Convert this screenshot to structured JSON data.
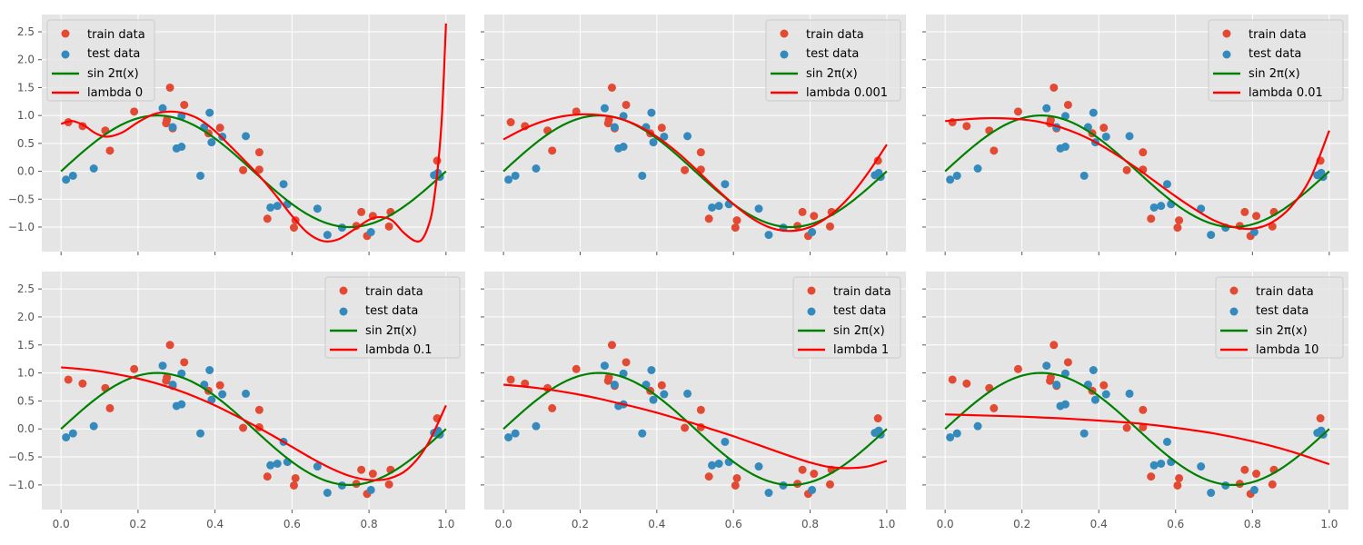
{
  "chart_data": {
    "type": "line",
    "layout": "2x3 grid of subplots, shared axes",
    "style": "ggplot",
    "colors": {
      "train": "#E24A33",
      "test": "#348ABD",
      "true_curve": "#008000",
      "fit_curve": "#FF0000",
      "axes_bg": "#E5E5E5",
      "grid": "#FFFFFF",
      "tick_text": "#555555"
    },
    "xlim": [
      -0.05,
      1.05
    ],
    "ylim": [
      -1.44,
      2.81
    ],
    "xticks": [
      0.0,
      0.2,
      0.4,
      0.6,
      0.8,
      1.0
    ],
    "xtick_labels": [
      "0.0",
      "0.2",
      "0.4",
      "0.6",
      "0.8",
      "1.0"
    ],
    "yticks": [
      -1.0,
      -0.5,
      0.0,
      0.5,
      1.0,
      1.5,
      2.0,
      2.5
    ],
    "ytick_labels": [
      "−1.0",
      "−0.5",
      "0.0",
      "0.5",
      "1.0",
      "1.5",
      "2.0",
      "2.5"
    ],
    "grid": true,
    "legend_labels": {
      "train": "train data",
      "test": "test data",
      "true_curve": "sin 2π(x)"
    },
    "train_data": {
      "x": [
        0.019,
        0.056,
        0.115,
        0.127,
        0.19,
        0.273,
        0.275,
        0.283,
        0.29,
        0.32,
        0.383,
        0.413,
        0.473,
        0.515,
        0.515,
        0.536,
        0.605,
        0.609,
        0.767,
        0.78,
        0.795,
        0.81,
        0.852,
        0.856,
        0.977
      ],
      "y": [
        0.88,
        0.81,
        0.73,
        0.37,
        1.07,
        0.86,
        0.92,
        1.5,
        0.77,
        1.19,
        0.68,
        0.78,
        0.02,
        0.34,
        0.03,
        -0.85,
        -1.01,
        -0.88,
        -0.98,
        -0.73,
        -1.16,
        -0.8,
        -0.99,
        -0.73,
        0.19
      ]
    },
    "test_data": {
      "x": [
        0.013,
        0.031,
        0.085,
        0.264,
        0.29,
        0.3,
        0.313,
        0.313,
        0.362,
        0.372,
        0.386,
        0.391,
        0.419,
        0.48,
        0.544,
        0.562,
        0.578,
        0.588,
        0.666,
        0.692,
        0.73,
        0.805,
        0.969,
        0.979,
        0.984
      ],
      "y": [
        -0.15,
        -0.08,
        0.05,
        1.13,
        0.79,
        0.41,
        0.44,
        0.99,
        -0.08,
        0.79,
        1.05,
        0.52,
        0.62,
        0.63,
        -0.65,
        -0.62,
        -0.23,
        -0.59,
        -0.67,
        -1.14,
        -1.01,
        -1.09,
        -0.07,
        -0.03,
        -0.1
      ]
    },
    "true_curve": {
      "function": "sin(2*pi*x)",
      "x_range": [
        0,
        1
      ]
    },
    "panels": [
      {
        "legend_label": "lambda 0",
        "legend_position": "top-left",
        "fit_curve": {
          "x": [
            0.0,
            0.03,
            0.06,
            0.09,
            0.12,
            0.16,
            0.2,
            0.24,
            0.28,
            0.32,
            0.36,
            0.4,
            0.44,
            0.48,
            0.52,
            0.56,
            0.6,
            0.64,
            0.68,
            0.72,
            0.76,
            0.8,
            0.83,
            0.86,
            0.89,
            0.92,
            0.94,
            0.96,
            0.97,
            0.98,
            0.99,
            1.0
          ],
          "y": [
            0.85,
            0.9,
            0.82,
            0.68,
            0.62,
            0.7,
            0.88,
            1.02,
            1.07,
            1.04,
            0.93,
            0.72,
            0.45,
            0.17,
            -0.12,
            -0.45,
            -0.8,
            -1.1,
            -1.25,
            -1.22,
            -1.05,
            -0.87,
            -0.82,
            -0.88,
            -1.1,
            -1.25,
            -1.2,
            -0.85,
            -0.45,
            0.15,
            1.05,
            2.65
          ]
        }
      },
      {
        "legend_label": "lambda 0.001",
        "legend_position": "top-right",
        "fit_curve": {
          "x": [
            0.0,
            0.05,
            0.1,
            0.15,
            0.2,
            0.25,
            0.3,
            0.35,
            0.4,
            0.45,
            0.5,
            0.55,
            0.6,
            0.65,
            0.7,
            0.75,
            0.8,
            0.85,
            0.9,
            0.95,
            1.0
          ],
          "y": [
            0.57,
            0.75,
            0.89,
            0.98,
            1.02,
            1.01,
            0.95,
            0.82,
            0.62,
            0.36,
            0.05,
            -0.28,
            -0.59,
            -0.85,
            -1.02,
            -1.07,
            -1.0,
            -0.8,
            -0.48,
            -0.04,
            0.48
          ]
        }
      },
      {
        "legend_label": "lambda 0.01",
        "legend_position": "top-right",
        "fit_curve": {
          "x": [
            0.0,
            0.05,
            0.1,
            0.15,
            0.2,
            0.25,
            0.3,
            0.35,
            0.4,
            0.45,
            0.5,
            0.55,
            0.6,
            0.65,
            0.7,
            0.75,
            0.8,
            0.85,
            0.9,
            0.95,
            1.0
          ],
          "y": [
            0.9,
            0.93,
            0.95,
            0.95,
            0.93,
            0.88,
            0.79,
            0.66,
            0.49,
            0.28,
            0.05,
            -0.2,
            -0.45,
            -0.68,
            -0.88,
            -1.0,
            -1.03,
            -0.92,
            -0.64,
            -0.14,
            0.73
          ]
        }
      },
      {
        "legend_label": "lambda 0.1",
        "legend_position": "top-right",
        "fit_curve": {
          "x": [
            0.0,
            0.05,
            0.1,
            0.15,
            0.2,
            0.25,
            0.3,
            0.35,
            0.4,
            0.45,
            0.5,
            0.55,
            0.6,
            0.65,
            0.7,
            0.75,
            0.8,
            0.85,
            0.9,
            0.95,
            1.0
          ],
          "y": [
            1.1,
            1.07,
            1.03,
            0.97,
            0.9,
            0.81,
            0.7,
            0.57,
            0.42,
            0.25,
            0.07,
            -0.12,
            -0.32,
            -0.52,
            -0.7,
            -0.84,
            -0.91,
            -0.89,
            -0.72,
            -0.3,
            0.42
          ]
        }
      },
      {
        "legend_label": "lambda 1",
        "legend_position": "top-right",
        "fit_curve": {
          "x": [
            0.0,
            0.05,
            0.1,
            0.15,
            0.2,
            0.25,
            0.3,
            0.35,
            0.4,
            0.45,
            0.5,
            0.55,
            0.6,
            0.65,
            0.7,
            0.75,
            0.8,
            0.85,
            0.9,
            0.95,
            1.0
          ],
          "y": [
            0.79,
            0.76,
            0.72,
            0.67,
            0.61,
            0.54,
            0.46,
            0.38,
            0.29,
            0.19,
            0.09,
            -0.02,
            -0.13,
            -0.25,
            -0.37,
            -0.49,
            -0.6,
            -0.68,
            -0.7,
            -0.67,
            -0.57
          ]
        }
      },
      {
        "legend_label": "lambda 10",
        "legend_position": "top-right",
        "fit_curve": {
          "x": [
            0.0,
            0.1,
            0.2,
            0.3,
            0.4,
            0.5,
            0.6,
            0.7,
            0.8,
            0.9,
            1.0
          ],
          "y": [
            0.26,
            0.24,
            0.22,
            0.19,
            0.15,
            0.1,
            0.02,
            -0.08,
            -0.22,
            -0.4,
            -0.63
          ]
        }
      }
    ]
  }
}
